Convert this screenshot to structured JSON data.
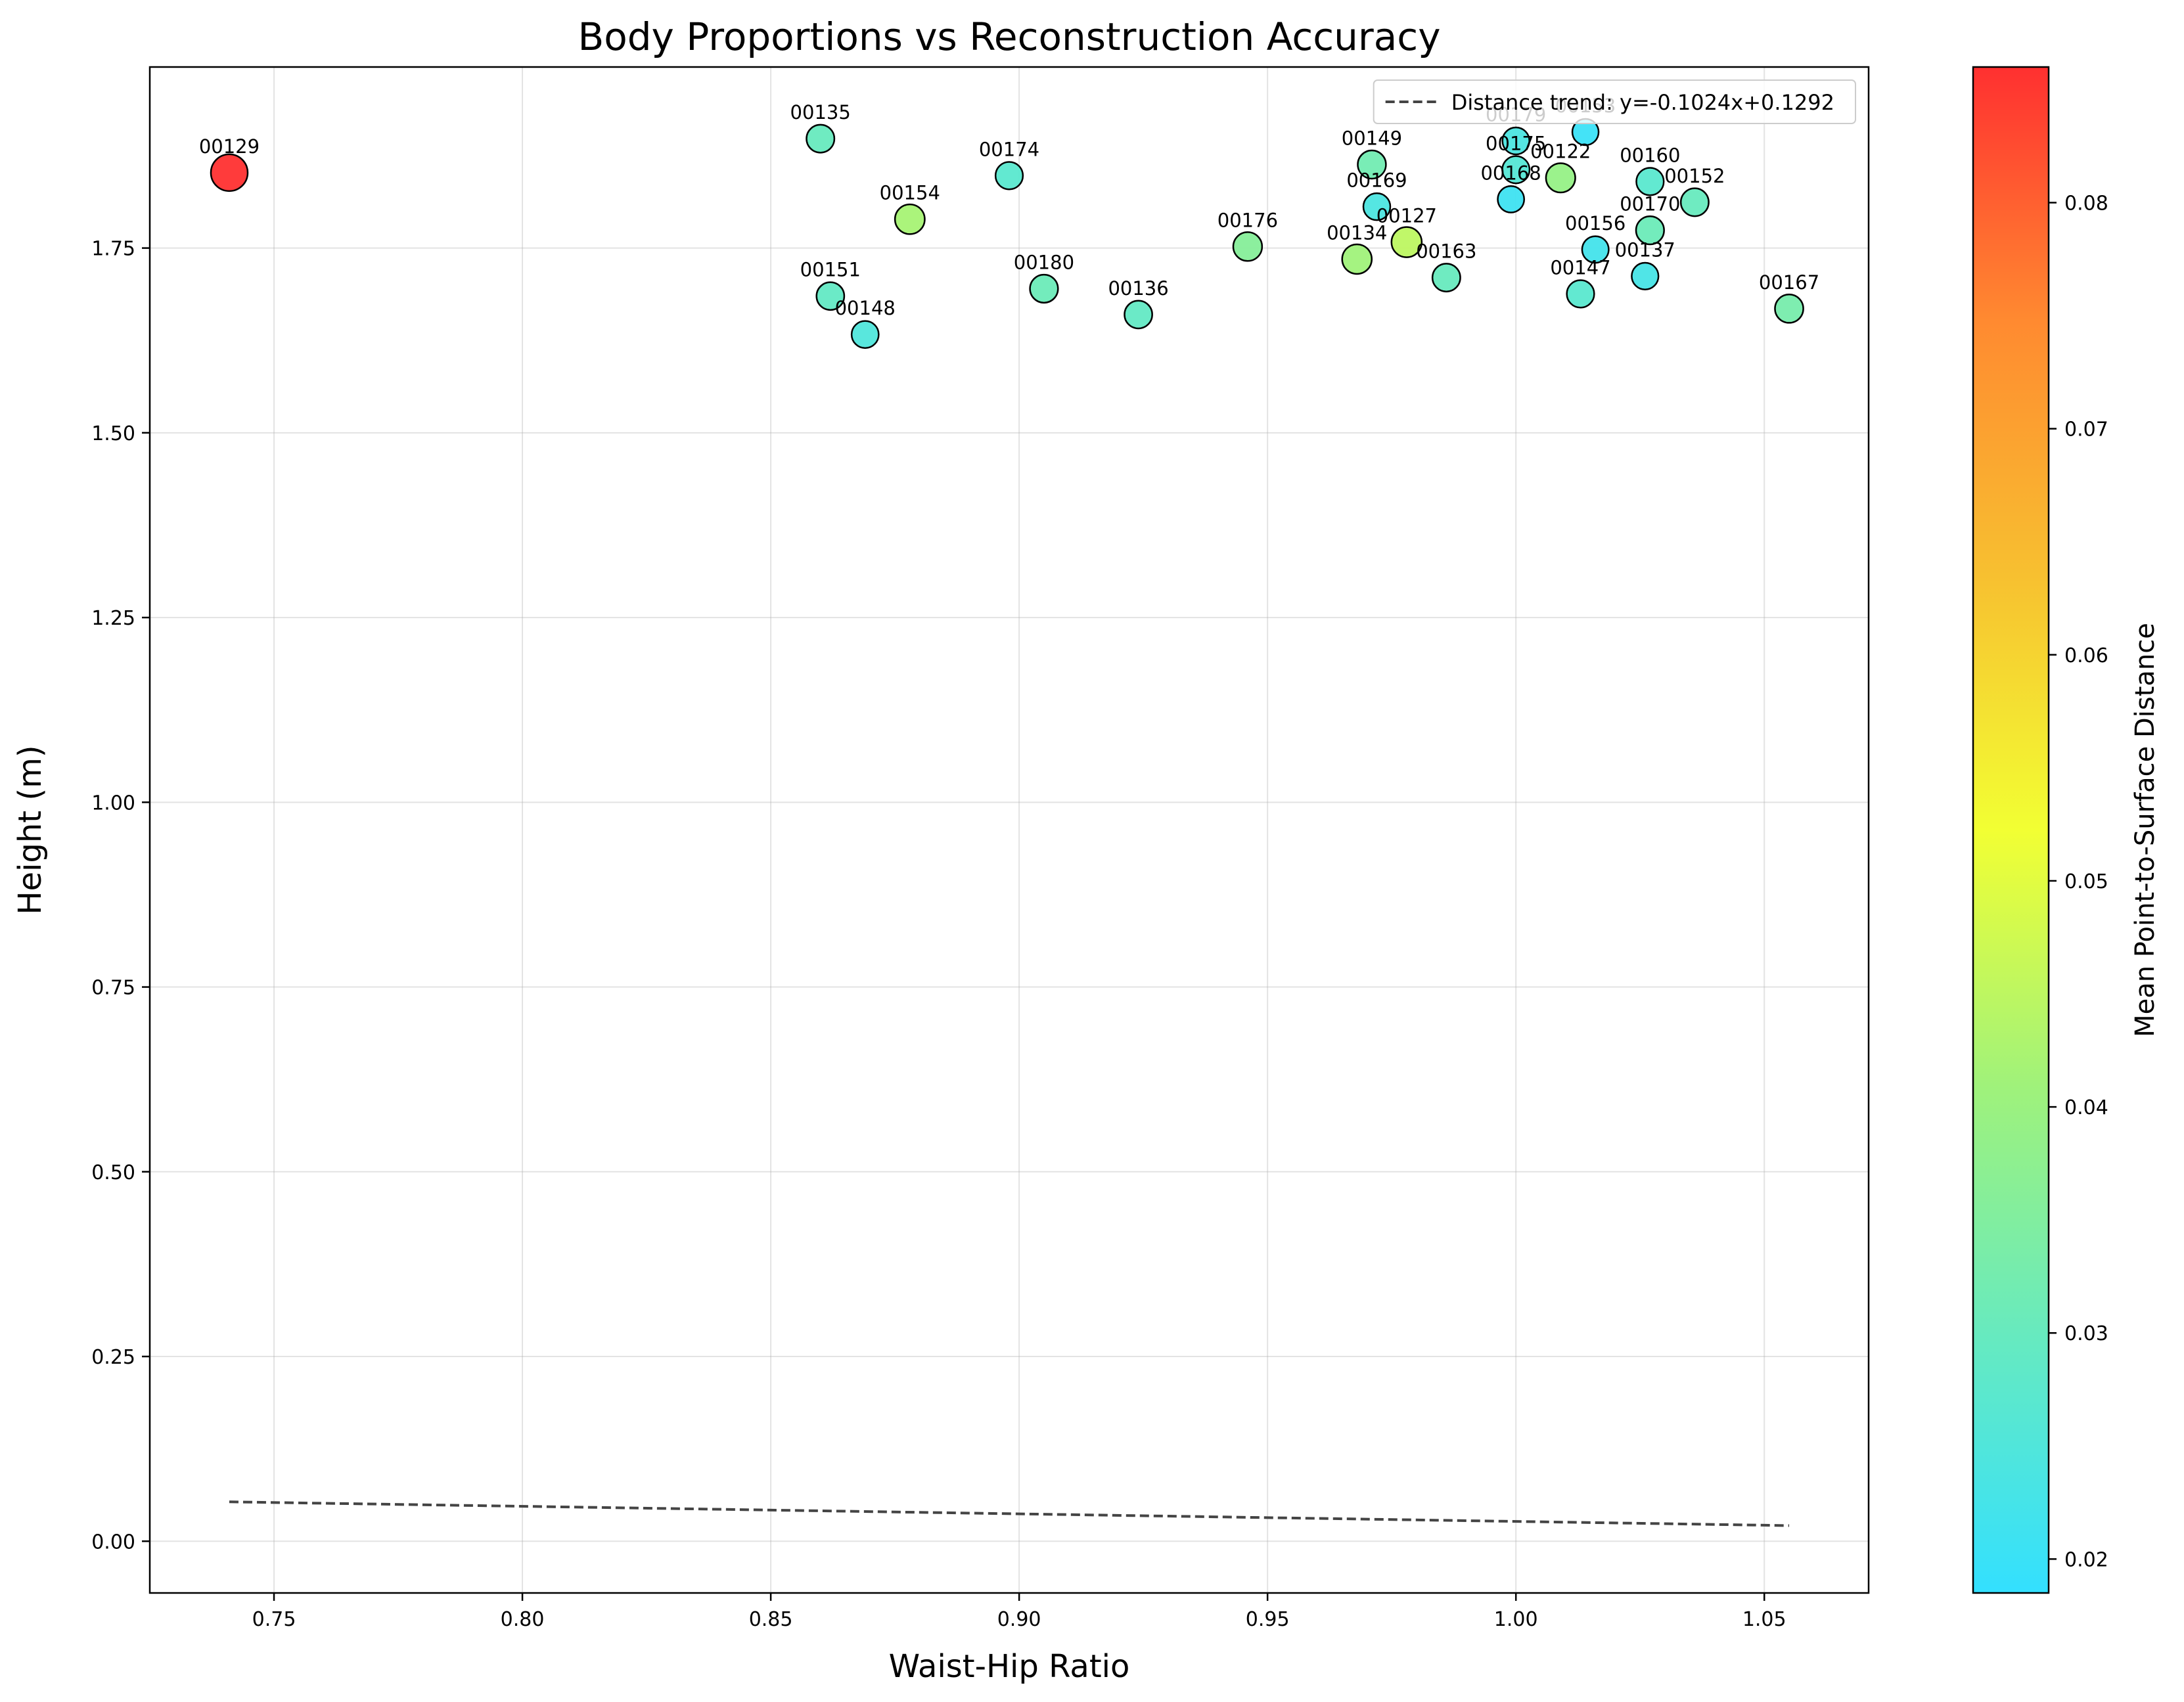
{
  "chart_data": {
    "type": "scatter",
    "title": "Body Proportions vs Reconstruction Accuracy",
    "xlabel": "Waist-Hip Ratio",
    "ylabel": "Height (m)",
    "xlim": [
      0.725,
      1.071
    ],
    "ylim": [
      -0.07,
      1.995
    ],
    "grid": true,
    "x_ticks": [
      0.75,
      0.8,
      0.85,
      0.9,
      0.95,
      1.0,
      1.05
    ],
    "x_tick_labels": [
      "0.75",
      "0.80",
      "0.85",
      "0.90",
      "0.95",
      "1.00",
      "1.05"
    ],
    "y_ticks": [
      0.0,
      0.25,
      0.5,
      0.75,
      1.0,
      1.25,
      1.5,
      1.75
    ],
    "y_tick_labels": [
      "0.00",
      "0.25",
      "0.50",
      "0.75",
      "1.00",
      "1.25",
      "1.50",
      "1.75"
    ],
    "colorbar": {
      "label": "Mean Point-to-Surface Distance",
      "range": [
        0.0185,
        0.086
      ],
      "ticks": [
        0.02,
        0.03,
        0.04,
        0.05,
        0.06,
        0.07,
        0.08
      ],
      "tick_labels": [
        "0.02",
        "0.03",
        "0.04",
        "0.05",
        "0.06",
        "0.07",
        "0.08"
      ],
      "colors": [
        "#33e0ff",
        "#66eac0",
        "#a0f27a",
        "#f2ff33",
        "#f7c030",
        "#ff8a30",
        "#ff3030"
      ]
    },
    "legend": {
      "placement": "top-right",
      "entries": [
        {
          "label": "Distance trend: y=-0.1024x+0.1292",
          "style": "dashed",
          "color": "#444444"
        }
      ]
    },
    "trend_line": {
      "slope": -0.1024,
      "intercept": 0.1292,
      "x_range": [
        0.741,
        1.055
      ],
      "color": "#444444"
    },
    "points": [
      {
        "id": "00129",
        "x": 0.741,
        "y": 1.852,
        "c": 0.086
      },
      {
        "id": "00135",
        "x": 0.86,
        "y": 1.898,
        "c": 0.03
      },
      {
        "id": "00174",
        "x": 0.898,
        "y": 1.848,
        "c": 0.027
      },
      {
        "id": "00154",
        "x": 0.878,
        "y": 1.789,
        "c": 0.042
      },
      {
        "id": "00151",
        "x": 0.862,
        "y": 1.685,
        "c": 0.029
      },
      {
        "id": "00148",
        "x": 0.869,
        "y": 1.633,
        "c": 0.025
      },
      {
        "id": "00180",
        "x": 0.905,
        "y": 1.695,
        "c": 0.031
      },
      {
        "id": "00136",
        "x": 0.924,
        "y": 1.66,
        "c": 0.029
      },
      {
        "id": "00176",
        "x": 0.946,
        "y": 1.752,
        "c": 0.036
      },
      {
        "id": "00149",
        "x": 0.971,
        "y": 1.863,
        "c": 0.032
      },
      {
        "id": "00169",
        "x": 0.972,
        "y": 1.806,
        "c": 0.024
      },
      {
        "id": "00134",
        "x": 0.968,
        "y": 1.735,
        "c": 0.041
      },
      {
        "id": "00127",
        "x": 0.978,
        "y": 1.758,
        "c": 0.045
      },
      {
        "id": "00163",
        "x": 0.986,
        "y": 1.71,
        "c": 0.03
      },
      {
        "id": "00179",
        "x": 1.0,
        "y": 1.895,
        "c": 0.024
      },
      {
        "id": "00175",
        "x": 1.0,
        "y": 1.856,
        "c": 0.026
      },
      {
        "id": "00168",
        "x": 0.999,
        "y": 1.816,
        "c": 0.021
      },
      {
        "id": "00122",
        "x": 1.009,
        "y": 1.845,
        "c": 0.039
      },
      {
        "id": "00153",
        "x": 1.014,
        "y": 1.907,
        "c": 0.02
      },
      {
        "id": "00160",
        "x": 1.027,
        "y": 1.84,
        "c": 0.027
      },
      {
        "id": "00152",
        "x": 1.036,
        "y": 1.812,
        "c": 0.03
      },
      {
        "id": "00170",
        "x": 1.027,
        "y": 1.774,
        "c": 0.031
      },
      {
        "id": "00156",
        "x": 1.016,
        "y": 1.748,
        "c": 0.022
      },
      {
        "id": "00147",
        "x": 1.013,
        "y": 1.688,
        "c": 0.027
      },
      {
        "id": "00137",
        "x": 1.026,
        "y": 1.712,
        "c": 0.023
      },
      {
        "id": "00167",
        "x": 1.055,
        "y": 1.668,
        "c": 0.033
      }
    ]
  }
}
